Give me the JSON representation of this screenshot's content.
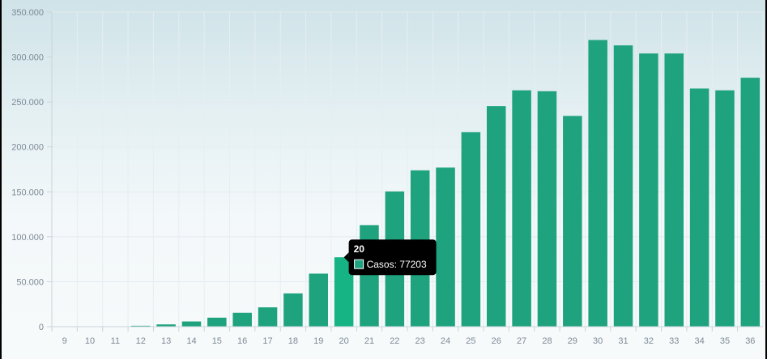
{
  "chart_data": {
    "type": "bar",
    "categories": [
      "9",
      "10",
      "11",
      "12",
      "13",
      "14",
      "15",
      "16",
      "17",
      "18",
      "19",
      "20",
      "21",
      "22",
      "23",
      "24",
      "25",
      "26",
      "27",
      "28",
      "29",
      "30",
      "31",
      "32",
      "33",
      "34",
      "35",
      "36"
    ],
    "series": [
      {
        "name": "Casos",
        "values": [
          0,
          0,
          0,
          1000,
          2500,
          5800,
          10000,
          15500,
          21500,
          37000,
          59000,
          77203,
          113000,
          150500,
          174000,
          177000,
          216500,
          245500,
          263000,
          262000,
          234500,
          319000,
          313000,
          304000,
          304000,
          265000,
          263000,
          277000
        ]
      }
    ],
    "y_ticks": [
      "0",
      "50.000",
      "100.000",
      "150.000",
      "200.000",
      "250.000",
      "300.000",
      "350.000"
    ],
    "ylim": [
      0,
      350000
    ],
    "grid": true,
    "bar_color": "#1fa37e",
    "highlight_color": "#16b384",
    "tooltip": {
      "category_index": 11,
      "title": "20",
      "label": "Casos: 77203",
      "swatch_color": "#1fa37e"
    }
  }
}
